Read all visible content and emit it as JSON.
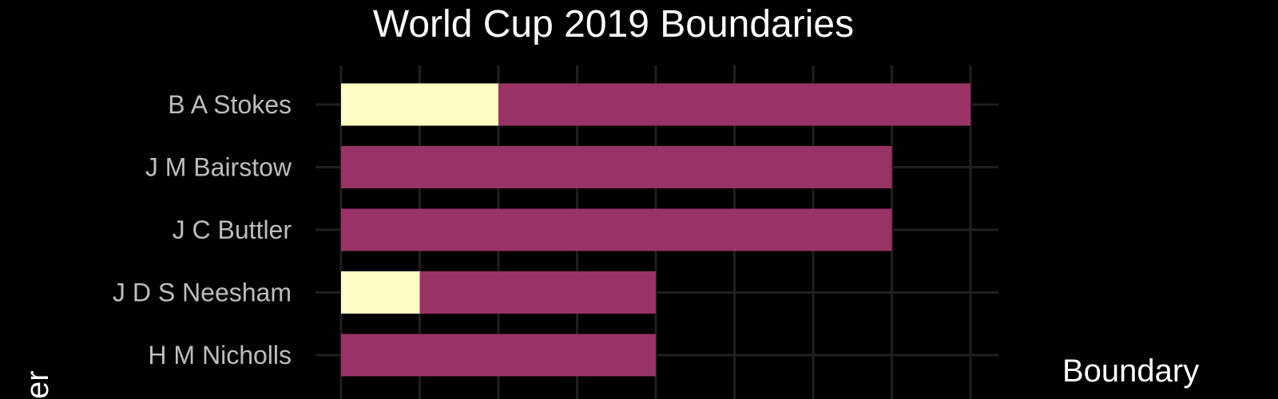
{
  "chart_data": {
    "type": "bar",
    "orientation": "horizontal",
    "stacked": true,
    "title": "World Cup 2019 Boundaries",
    "xlabel": "",
    "ylabel": "er",
    "legend_title": "Boundary",
    "legend_position": "right",
    "grid": true,
    "categories": [
      "B A Stokes",
      "J M Bairstow",
      "J C Buttler",
      "J D S Neesham",
      "H M Nicholls"
    ],
    "series": [
      {
        "values": [
          2,
          0,
          0,
          1,
          0
        ],
        "color": "#fffcc3"
      },
      {
        "values": [
          6,
          7,
          7,
          3,
          4
        ],
        "color": "#993366"
      }
    ],
    "xlim": [
      0,
      8.4
    ]
  }
}
